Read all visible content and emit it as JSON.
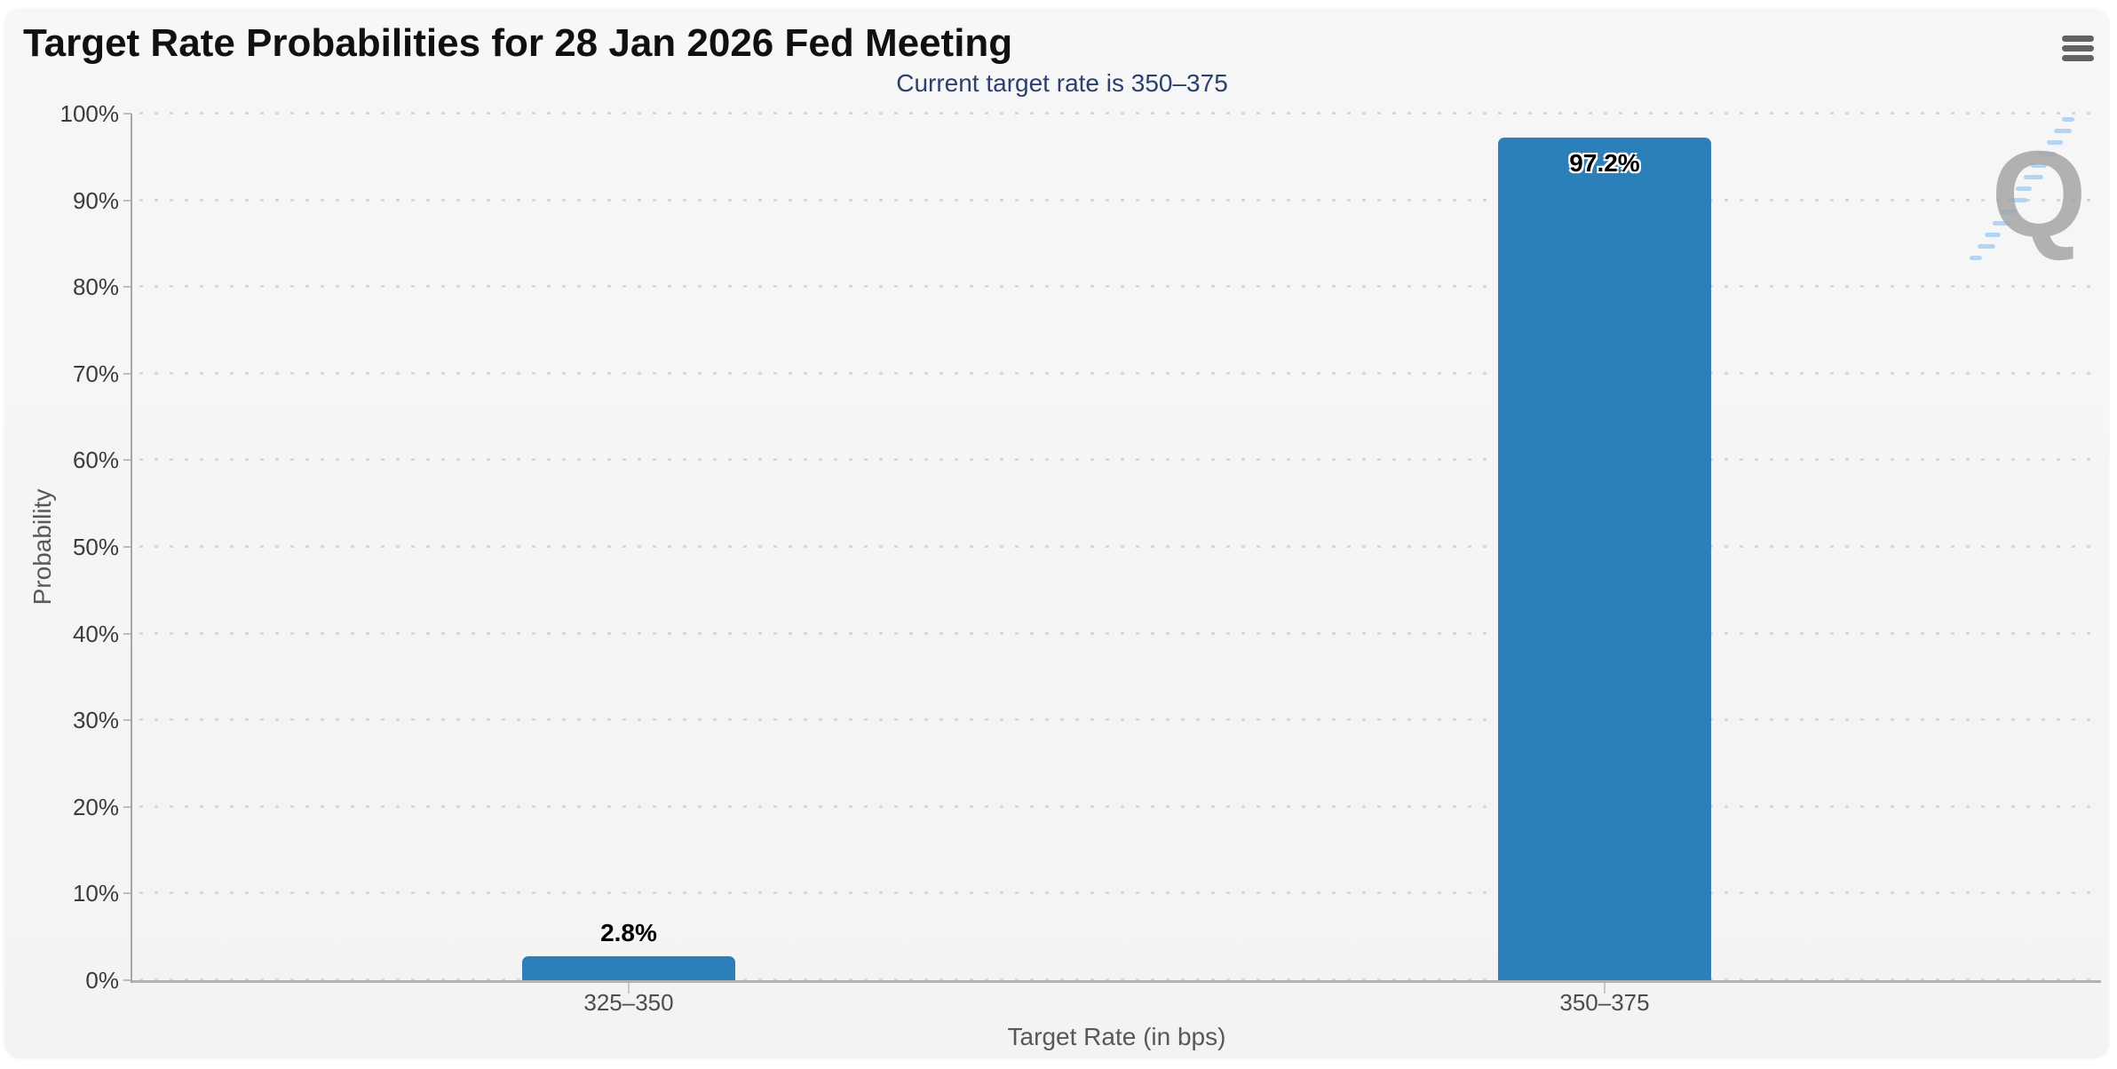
{
  "header": {
    "menu_icon": "hamburger"
  },
  "chart_data": {
    "type": "bar",
    "title": "Target Rate Probabilities for 28 Jan 2026 Fed Meeting",
    "subtitle": "Current target rate is 350–375",
    "categories": [
      "325–350",
      "350–375"
    ],
    "values": [
      2.8,
      97.2
    ],
    "value_labels": [
      "2.8%",
      "97.2%"
    ],
    "series": [
      {
        "name": "Probability",
        "values": [
          2.8,
          97.2
        ]
      }
    ],
    "xlabel": "Target Rate (in bps)",
    "ylabel": "Probability",
    "ylim": [
      0,
      100
    ],
    "ytick_labels": [
      "0%",
      "10%",
      "20%",
      "30%",
      "40%",
      "50%",
      "60%",
      "70%",
      "80%",
      "90%",
      "100%"
    ],
    "grid": "dotted-horizontal",
    "legend": "none",
    "bar_color": "#2c80ba",
    "subtitle_color": "#2c406e"
  },
  "watermark": {
    "letter": "Q"
  }
}
